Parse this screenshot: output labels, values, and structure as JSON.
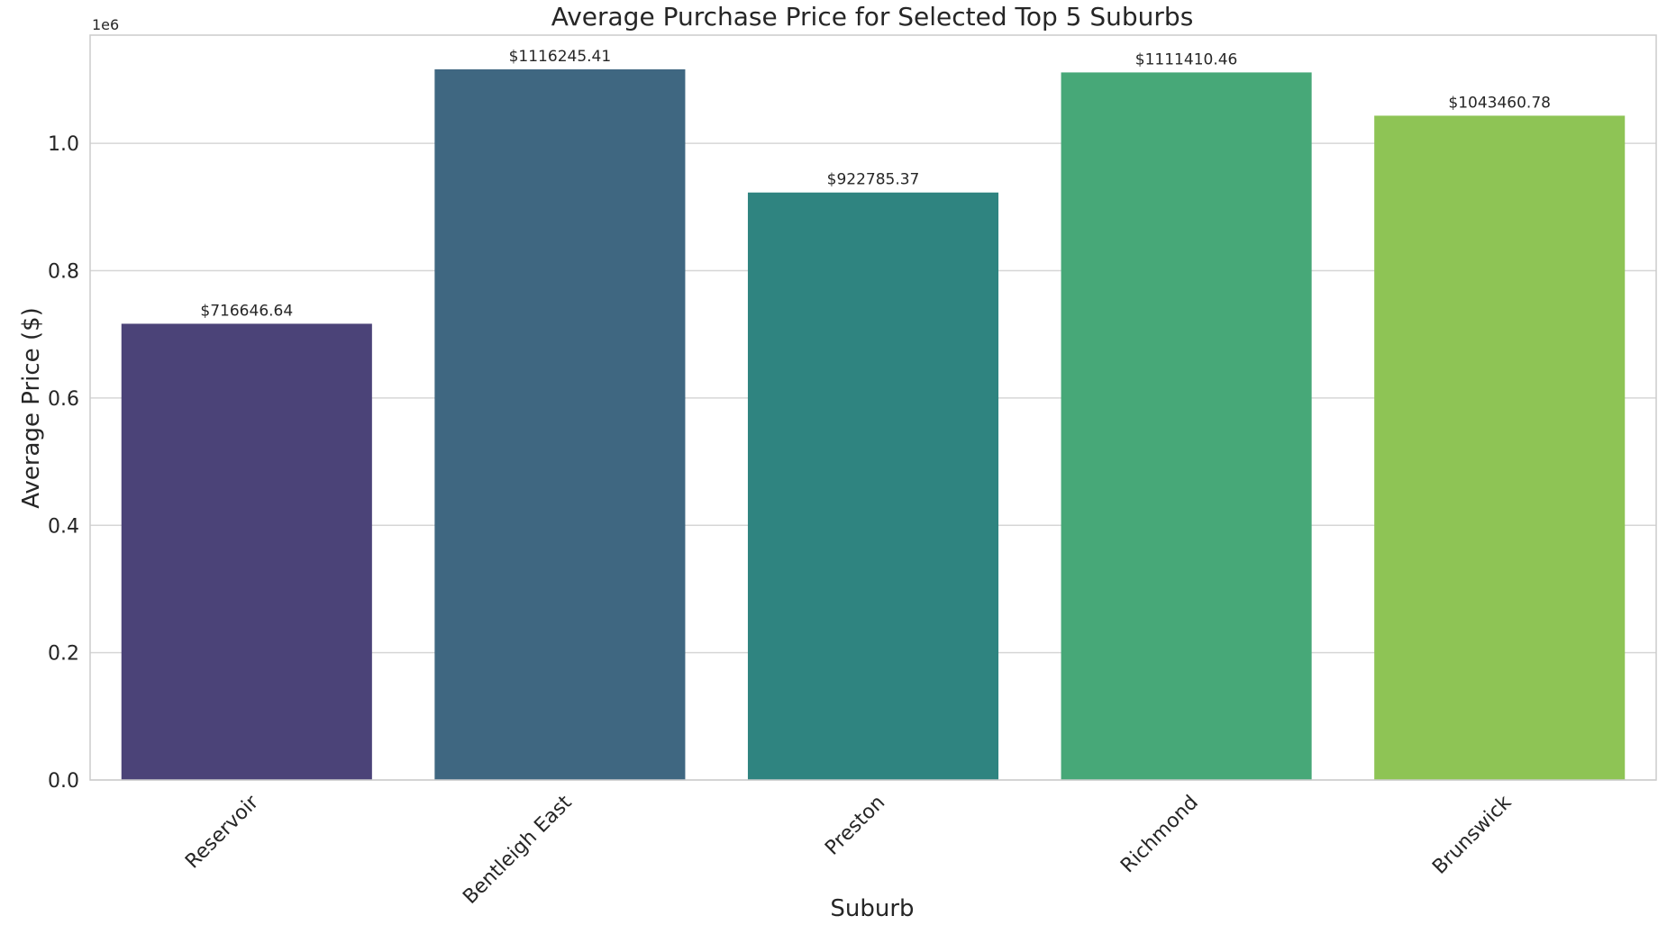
{
  "chart_data": {
    "type": "bar",
    "title": "Average Purchase Price for Selected Top 5 Suburbs",
    "xlabel": "Suburb",
    "ylabel": "Average Price ($)",
    "y_offset_label": "1e6",
    "y_scale": 1000000,
    "ylim": [
      0,
      1170000
    ],
    "yticks": [
      0,
      200000,
      400000,
      600000,
      800000,
      1000000
    ],
    "ytick_labels": [
      "0.0",
      "0.2",
      "0.4",
      "0.6",
      "0.8",
      "1.0"
    ],
    "grid": true,
    "categories": [
      "Reservoir",
      "Bentleigh East",
      "Preston",
      "Richmond",
      "Brunswick"
    ],
    "values": [
      716646.64,
      1116245.41,
      922785.37,
      1111410.46,
      1043460.78
    ],
    "data_labels": [
      "$716646.64",
      "$1116245.41",
      "$922785.37",
      "$1111410.46",
      "$1043460.78"
    ],
    "colors": [
      "#4b4378",
      "#3f6781",
      "#2f8480",
      "#47a878",
      "#8ec455"
    ]
  }
}
